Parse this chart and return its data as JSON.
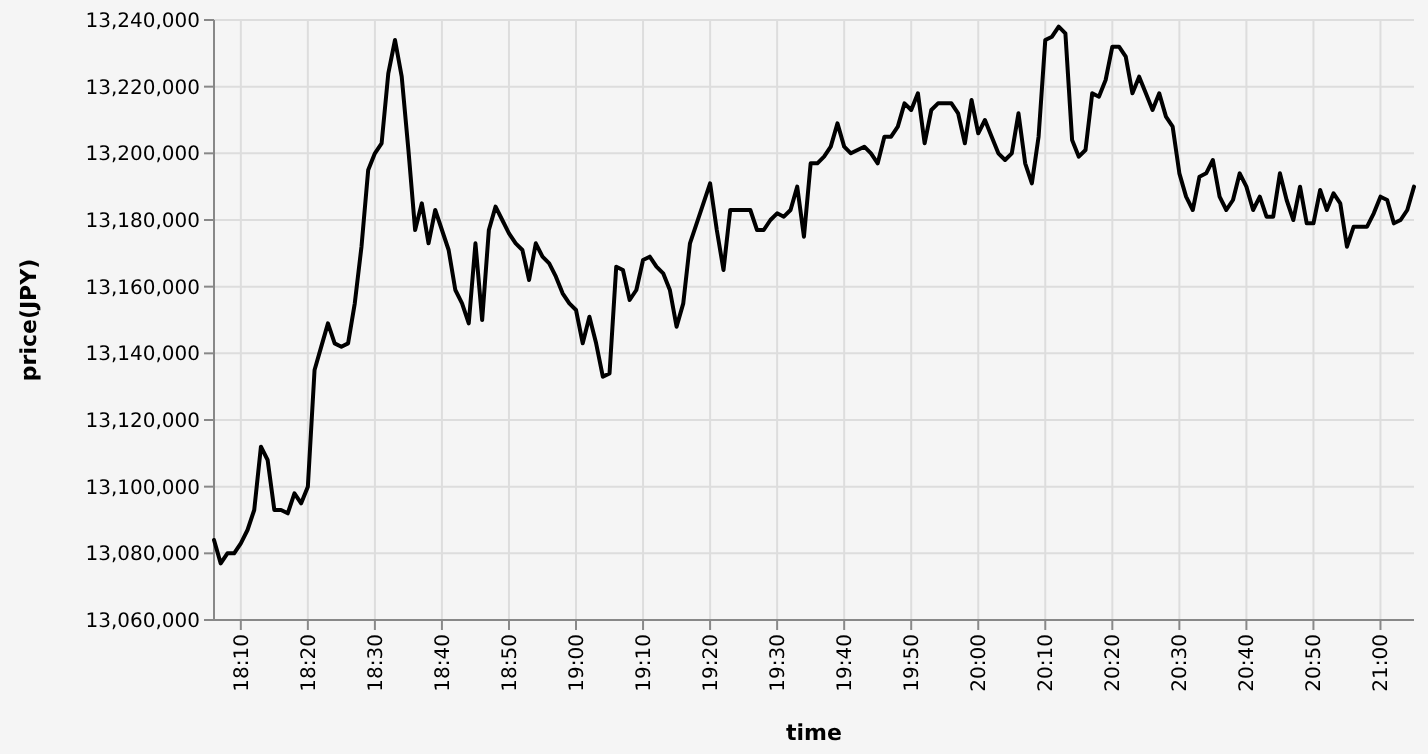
{
  "chart_data": {
    "type": "line",
    "xlabel": "time",
    "ylabel": "price(JPY)",
    "categories": [
      null,
      null,
      null,
      null,
      "18:10",
      null,
      null,
      null,
      null,
      null,
      null,
      null,
      null,
      null,
      "18:20",
      null,
      null,
      null,
      null,
      null,
      null,
      null,
      null,
      null,
      "18:30",
      null,
      null,
      null,
      null,
      null,
      null,
      null,
      null,
      null,
      "18:40",
      null,
      null,
      null,
      null,
      null,
      null,
      null,
      null,
      null,
      "18:50",
      null,
      null,
      null,
      null,
      null,
      null,
      null,
      null,
      null,
      "19:00",
      null,
      null,
      null,
      null,
      null,
      null,
      null,
      null,
      null,
      "19:10",
      null,
      null,
      null,
      null,
      null,
      null,
      null,
      null,
      null,
      "19:20",
      null,
      null,
      null,
      null,
      null,
      null,
      null,
      null,
      null,
      "19:30",
      null,
      null,
      null,
      null,
      null,
      null,
      null,
      null,
      null,
      "19:40",
      null,
      null,
      null,
      null,
      null,
      null,
      null,
      null,
      null,
      "19:50",
      null,
      null,
      null,
      null,
      null,
      null,
      null,
      null,
      null,
      "20:00",
      null,
      null,
      null,
      null,
      null,
      null,
      null,
      null,
      null,
      "20:10",
      null,
      null,
      null,
      null,
      null,
      null,
      null,
      null,
      null,
      "20:20",
      null,
      null,
      null,
      null,
      null,
      null,
      null,
      null,
      null,
      "20:30",
      null,
      null,
      null,
      null,
      null,
      null,
      null,
      null,
      null,
      "20:40",
      null,
      null,
      null,
      null,
      null,
      null,
      null,
      null,
      null,
      "20:50",
      null,
      null,
      null,
      null,
      null,
      null,
      null,
      null,
      null,
      "21:00",
      null,
      null,
      null,
      null,
      null
    ],
    "series": [
      {
        "color": "#000000",
        "values": [
          13084000,
          13077000,
          13080000,
          13080000,
          13083000,
          13087000,
          13093000,
          13112000,
          13108000,
          13093000,
          13093000,
          13092000,
          13098000,
          13095000,
          13100000,
          13135000,
          13142000,
          13149000,
          13143000,
          13142000,
          13143000,
          13155000,
          13172000,
          13195000,
          13200000,
          13203000,
          13224000,
          13234000,
          13223000,
          13201000,
          13177000,
          13185000,
          13173000,
          13183000,
          13177000,
          13171000,
          13159000,
          13155000,
          13149000,
          13173000,
          13150000,
          13177000,
          13184000,
          13180000,
          13176000,
          13173000,
          13171000,
          13162000,
          13173000,
          13169000,
          13167000,
          13163000,
          13158000,
          13155000,
          13153000,
          13143000,
          13151000,
          13143000,
          13133000,
          13134000,
          13166000,
          13165000,
          13156000,
          13159000,
          13168000,
          13169000,
          13166000,
          13164000,
          13159000,
          13148000,
          13155000,
          13173000,
          13179000,
          13185000,
          13191000,
          13177000,
          13165000,
          13183000,
          13183000,
          13183000,
          13183000,
          13177000,
          13177000,
          13180000,
          13182000,
          13181000,
          13183000,
          13190000,
          13175000,
          13197000,
          13197000,
          13199000,
          13202000,
          13209000,
          13202000,
          13200000,
          13201000,
          13202000,
          13200000,
          13197000,
          13205000,
          13205000,
          13208000,
          13215000,
          13213000,
          13218000,
          13203000,
          13213000,
          13215000,
          13215000,
          13215000,
          13212000,
          13203000,
          13216000,
          13206000,
          13210000,
          13205000,
          13200000,
          13198000,
          13200000,
          13212000,
          13197000,
          13191000,
          13205000,
          13234000,
          13235000,
          13238000,
          13236000,
          13204000,
          13199000,
          13201000,
          13218000,
          13217000,
          13222000,
          13232000,
          13232000,
          13229000,
          13218000,
          13223000,
          13218000,
          13213000,
          13218000,
          13211000,
          13208000,
          13194000,
          13187000,
          13183000,
          13193000,
          13194000,
          13198000,
          13187000,
          13183000,
          13186000,
          13194000,
          13190000,
          13183000,
          13187000,
          13181000,
          13181000,
          13194000,
          13186000,
          13180000,
          13190000,
          13179000,
          13179000,
          13189000,
          13183000,
          13188000,
          13185000,
          13172000,
          13178000,
          13178000,
          13178000,
          13182000,
          13187000,
          13186000,
          13179000,
          13180000,
          13183000,
          13190000
        ]
      }
    ],
    "ylim": [
      13060000,
      13240000
    ],
    "yticks": [
      {
        "value": 13060000,
        "label": "13,060,000"
      },
      {
        "value": 13080000,
        "label": "13,080,000"
      },
      {
        "value": 13100000,
        "label": "13,100,000"
      },
      {
        "value": 13120000,
        "label": "13,120,000"
      },
      {
        "value": 13140000,
        "label": "13,140,000"
      },
      {
        "value": 13160000,
        "label": "13,160,000"
      },
      {
        "value": 13180000,
        "label": "13,180,000"
      },
      {
        "value": 13200000,
        "label": "13,200,000"
      },
      {
        "value": 13220000,
        "label": "13,220,000"
      },
      {
        "value": 13240000,
        "label": "13,240,000"
      }
    ],
    "grid": true
  }
}
